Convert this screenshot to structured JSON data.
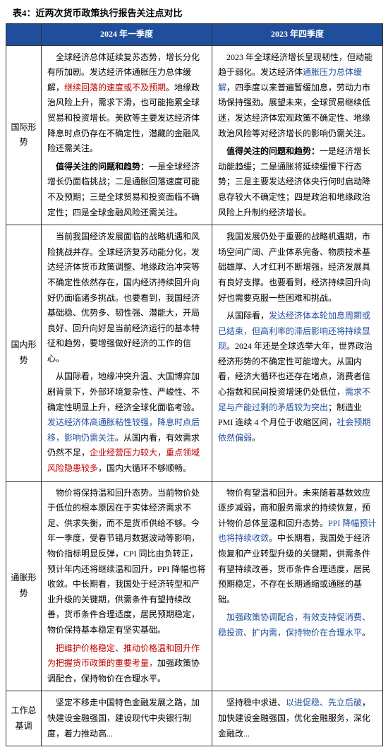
{
  "title": "表4：近两次货币政策执行报告关注点对比",
  "header": {
    "col1": "",
    "col2": "2024 年一季度",
    "col3": "2023 年四季度"
  },
  "rows": {
    "r1": {
      "label": "国际形势",
      "q1_p1_a": "全球经济总体延续复苏态势，增长分化有所加剧。发达经济体通胀压力总体缓解，",
      "q1_p1_red": "继续回落的速度或不及预期",
      "q1_p1_b": "。地缘政治风险上升，需求下滑，也可能拖累全球贸易和投资增长。美欧等主要发达经济体降息时点仍存在不确定性，潜藏的金融风险还需关注。",
      "q1_p2_bold": "值得关注的问题和趋势：",
      "q1_p2_rest": "一是全球经济增长仍面临挑战；二是通胀回落速度可能不及预期；三是全球贸易和投资面临不确定性；四是全球金融风险还需关注。",
      "q4_p1_a": "2023 年全球经济增长呈现韧性，但动能趋于弱化。发达经济体",
      "q4_p1_blue": "通胀压力总体缓解",
      "q4_p1_b": "，四季度以来普遍暂缓加息，劳动力市场保持强劲。展望未来，全球贸易继续低迷，发达经济体宏观政策不确定性、地缘政治风险等对经济增长的影响仍需关注。",
      "q4_p2_bold": "值得关注的问题和趋势：",
      "q4_p2_rest": "一是经济增长动能趋缓；二是通胀将延续缓慢下行态势；三是主要发达经济体央行何时启动降息存较大不确定性；四是政治和地缘政治风险上升制约经济增长。"
    },
    "r2": {
      "label": "国内形势",
      "q1_p1": "当前我国经济发展面临的战略机遇和风险挑战并存。全球经济复苏动能分化，发达经济体货币政策调整、地缘政治冲突等不确定性依然存在，国内经济持续回升向好仍面临诸多挑战。也要看到，我国经济基础稳、优势多、韧性强、潜能大，开局良好、回升向好是当前经济运行的基本特征和趋势，要增强做好经济的工作的信心。",
      "q1_p2_a": "从国际看，地缘冲突升温、大国博弈加剧背景下，外部环境复杂性、严峻性、不确定性明显上升，经济全球化面临考验。",
      "q1_p2_blue": "发达经济体高通胀粘性较强，降息时点后移，影响仍需关注",
      "q1_p2_b": "。从国内看，有效需求仍然不足，",
      "q1_p2_red": "企业经营压力较大，重点领域风险隐患较多",
      "q1_p2_c": "，国内大循环不够顺畅。",
      "q4_p1": "我国发展仍处于重要的战略机遇期，市场空间广阔、产业体系完备、物质技术基础雄厚、人才红利不断增强，经济发展具有良好支撑。也要看到，经济持续回升向好也需要克服一些困难和挑战。",
      "q4_p2_a": "从国际看，",
      "q4_p2_blue1": "发达经济体本轮加息周期或已结束，但高利率的滞后影响还将持续显现",
      "q4_p2_b": "。2024 年还是全球选举大年，世界政治经济形势的不确定性可能增大。从国内看，经济大循环也还存在堵点，消费者信心指数和民间投资增速仍处低位，",
      "q4_p2_blue2": "需求不足与产能过剩的矛盾较为突出",
      "q4_p2_c": "；制造业 PMI 连续 4 个月位于收缩区间，",
      "q4_p2_blue3": "社会预期依然偏弱",
      "q4_p2_d": "。"
    },
    "r3": {
      "label": "通胀形势",
      "q1_p1": "物价将保持温和回升态势。当前物价处于低位的根本原因在于实体经济需求不足、供求失衡，而不是货币供给不够。今年一季度，受春节错月数据波动等影响，物价指标明显反弹，CPI 同比由负转正，预计年内还将继续温和回升，PPI  降幅也将收敛。中长期看，我国处于经济转型和产业升级的关键期，供需条件有望持续改善，货币条件合理适度，居民预期稳定，物价保持基本稳定有坚实基础。",
      "q1_p2_red": "把维护价格稳定、推动价格温和回升作为把握货币政策的重要考量，",
      "q1_p2_rest": "加强政策协调配合，保持物价在合理水平。",
      "q4_p1_a": "物价有望温和回升。未来随着基数效应逐步减弱，商和服务需求的持续恢复，预计物价总体呈温和回升态势。",
      "q4_p1_blue": "PPI 降幅预计也将持续收敛",
      "q4_p1_b": "。中长期看，我国处于经济恢复和产业转型升级的关键期，供需条件有望持续改善，货币条件合理适度，居民预期稳定，不存在长期通缩或通胀的基础。",
      "q4_p2_blue": "加强政策协调配合，有效支持促消费、稳投资、扩内需，保持物价在合理水平",
      "q4_p2_rest": "。"
    },
    "r4": {
      "label": "工作总基调",
      "q1": "坚定不移走中国特色金融发展之路，加快建设金融强国，建设现代中央银行制度，着力推动高...",
      "q4_a": "坚持稳中求进、",
      "q4_blue": "以进促稳、先立后破",
      "q4_b": "，加快建设金融强国，优化金融服务，深化金融改..."
    }
  }
}
